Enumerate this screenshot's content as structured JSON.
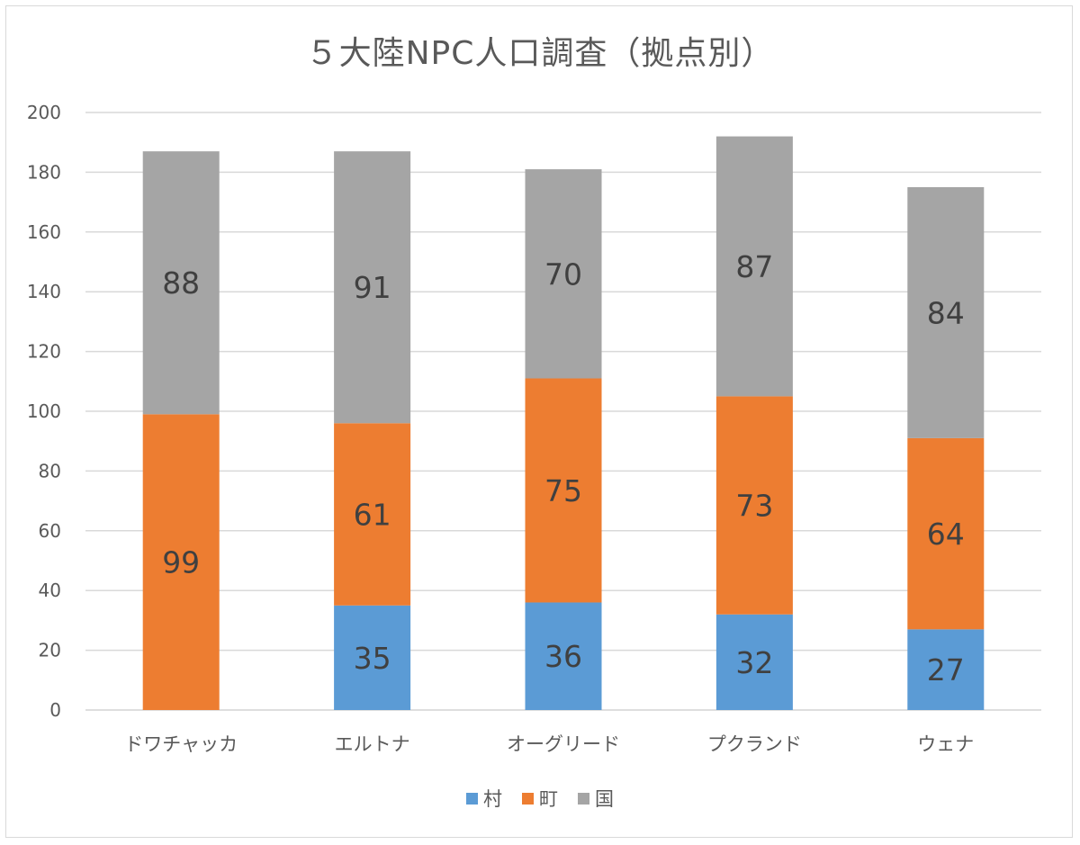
{
  "chart_data": {
    "type": "bar",
    "stacked": true,
    "title": "５大陸NPC人口調査（拠点別）",
    "categories": [
      "ドワチャッカ",
      "エルトナ",
      "オーグリード",
      "プクランド",
      "ウェナ"
    ],
    "series": [
      {
        "name": "村",
        "color": "#5b9bd5",
        "values": [
          0,
          35,
          36,
          32,
          27
        ],
        "labels": [
          "",
          "35",
          "36",
          "32",
          "27"
        ]
      },
      {
        "name": "町",
        "color": "#ed7d31",
        "values": [
          99,
          61,
          75,
          73,
          64
        ],
        "labels": [
          "99",
          "61",
          "75",
          "73",
          "64"
        ]
      },
      {
        "name": "国",
        "color": "#a5a5a5",
        "values": [
          88,
          91,
          70,
          87,
          84
        ],
        "labels": [
          "88",
          "91",
          "70",
          "87",
          "84"
        ]
      }
    ],
    "ylim": [
      0,
      200
    ],
    "yticks": [
      0,
      20,
      40,
      60,
      80,
      100,
      120,
      140,
      160,
      180,
      200
    ],
    "grid": true,
    "legend_position": "bottom"
  }
}
